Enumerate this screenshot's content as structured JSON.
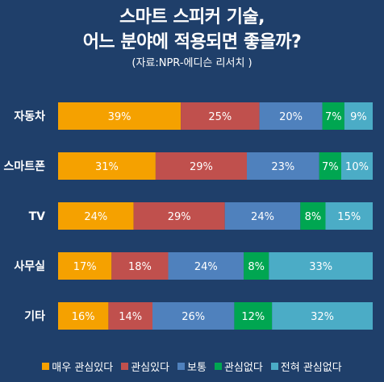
{
  "title_lines": [
    "스마트 스피커 기술,",
    "어느 분야에 적용되면 좋을까?"
  ],
  "source": "(자료:NPR-에디슨 리서치 )",
  "chart_data": {
    "type": "bar",
    "orientation": "horizontal",
    "stacked": true,
    "percent_stacked": true,
    "categories": [
      "자동차",
      "스마트폰",
      "TV",
      "사무실",
      "기타"
    ],
    "series": [
      {
        "name": "매우 관심있다",
        "color": "#f5a100",
        "values": [
          39,
          31,
          24,
          17,
          16
        ]
      },
      {
        "name": "관심있다",
        "color": "#c0504d",
        "values": [
          25,
          29,
          29,
          18,
          14
        ]
      },
      {
        "name": "보통",
        "color": "#4f81bd",
        "values": [
          20,
          23,
          24,
          24,
          26
        ]
      },
      {
        "name": "관심없다",
        "color": "#00a651",
        "values": [
          7,
          7,
          8,
          8,
          12
        ]
      },
      {
        "name": "전혀 관심없다",
        "color": "#4bacc6",
        "values": [
          9,
          10,
          15,
          33,
          32
        ]
      }
    ],
    "value_format": "{v}%",
    "legend_position": "bottom",
    "grid": false
  },
  "colors": {
    "background": "#1f3f6a",
    "text": "#ffffff"
  }
}
